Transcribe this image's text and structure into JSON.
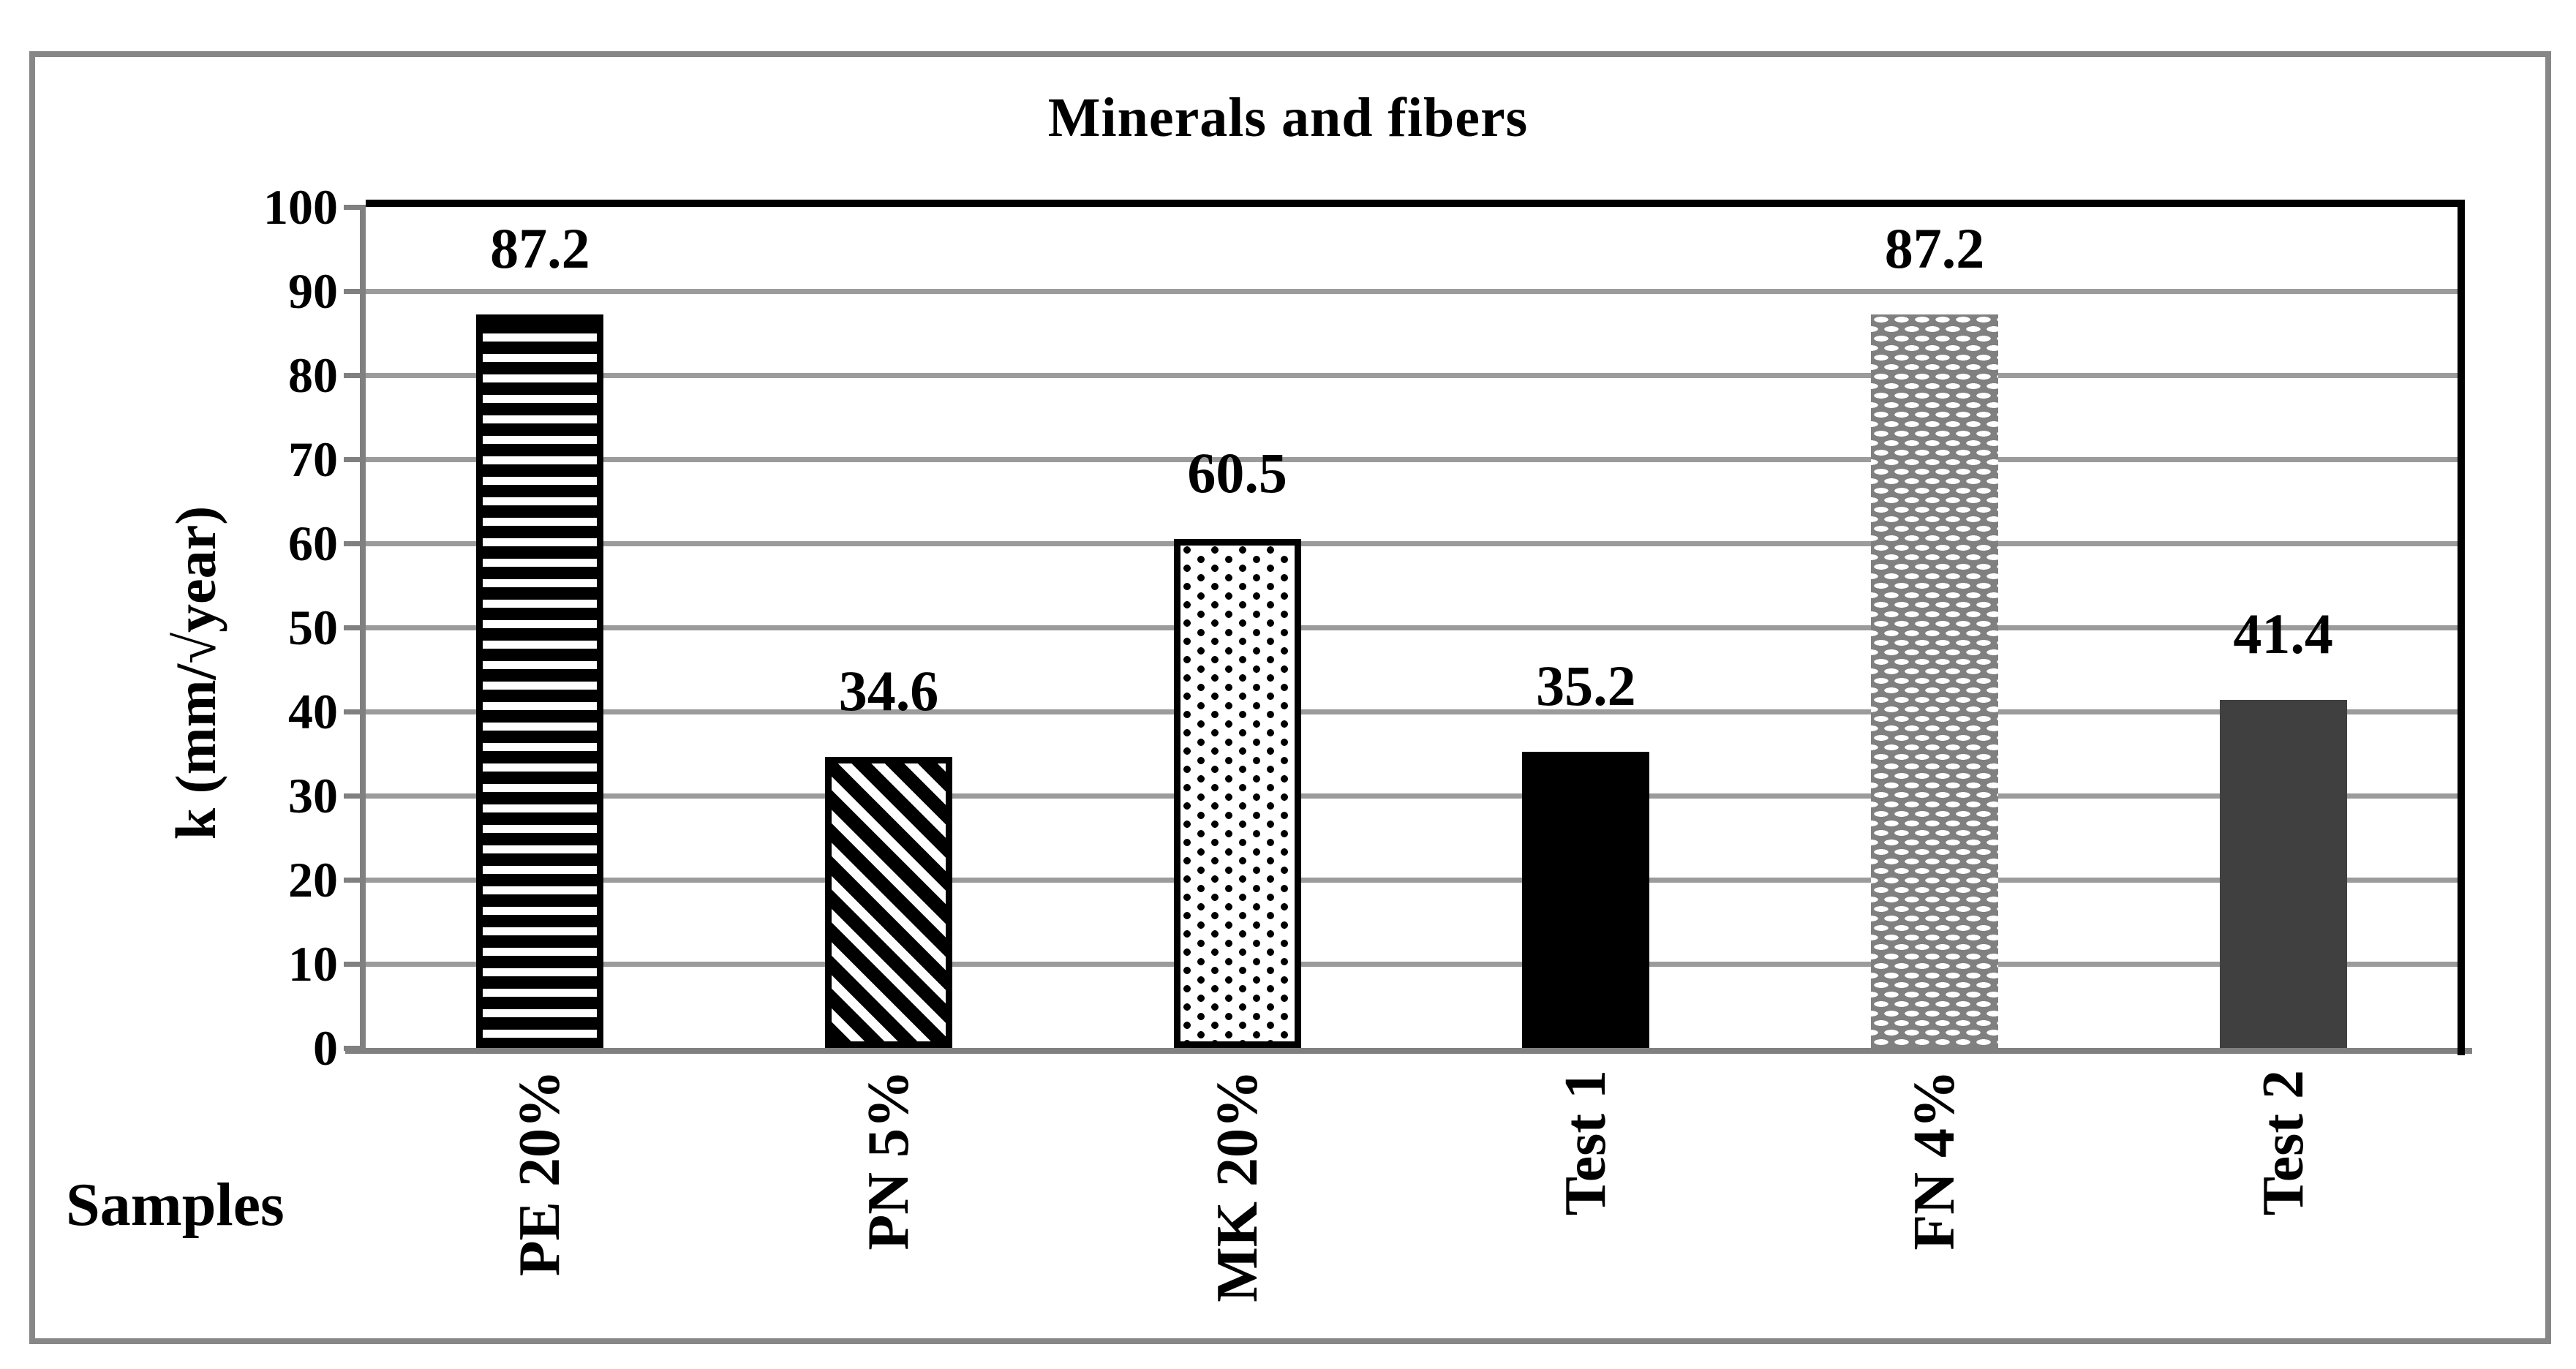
{
  "title": "Minerals and fibers",
  "chart_data": {
    "type": "bar",
    "title": "Minerals and fibers",
    "xlabel": "Samples",
    "ylabel": "k (mm/√year)",
    "ylim": [
      0,
      100
    ],
    "ytick_step": 10,
    "yticks": [
      0,
      10,
      20,
      30,
      40,
      50,
      60,
      70,
      80,
      90,
      100
    ],
    "grid": true,
    "legend": "none",
    "categories": [
      "PE 20%",
      "PN 5%",
      "MK 20%",
      "Test 1",
      "FN 4%",
      "Test 2"
    ],
    "values": [
      87.2,
      34.6,
      60.5,
      35.2,
      87.2,
      41.4
    ],
    "data_labels": [
      "87.2",
      "34.6",
      "60.5",
      "35.2",
      "87.2",
      "41.4"
    ],
    "bar_patterns": [
      "horizontal-stripes",
      "diagonal-stripes",
      "dots",
      "solid-black",
      "gray-bricks",
      "solid-darkgray"
    ],
    "colors": {
      "bar_black": "#000000",
      "bar_dark_gray": "#404040",
      "bar_medium_gray": "#808080",
      "gridline": "#9b9b9b",
      "axis_line": "#808080",
      "plot_border": "#000000",
      "outer_frame": "#878787"
    }
  }
}
